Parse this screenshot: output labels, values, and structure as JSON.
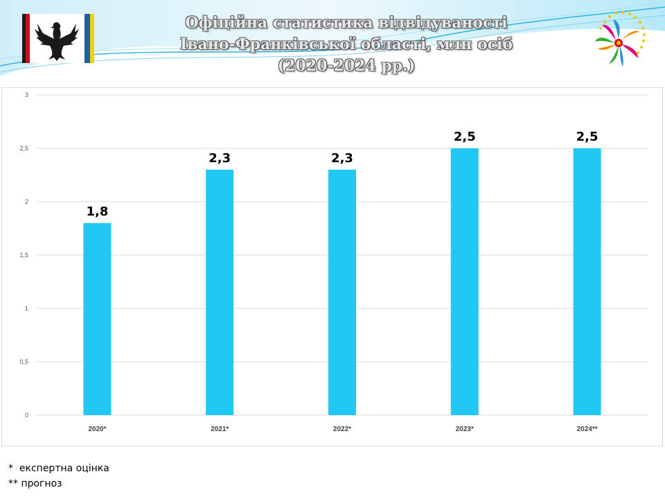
{
  "header": {
    "title_lines": [
      "Офіційна статистика відвідуваності",
      "Івано-Франківської області, млн осіб",
      "(2020-2024 рр.)"
    ]
  },
  "footnotes": [
    "*  експертна оцінка",
    "** прогноз"
  ],
  "colors": {
    "bar": "#22c8f4",
    "grid": "#d9d9d9",
    "flag_black": "#1a1a1a",
    "flag_red": "#c0141c",
    "flag_blue": "#1f5fa8",
    "flag_yellow": "#f5d000"
  },
  "chart_data": {
    "type": "bar",
    "categories": [
      "2020*",
      "2021*",
      "2022*",
      "2023*",
      "2024**"
    ],
    "values": [
      1.8,
      2.3,
      2.3,
      2.5,
      2.5
    ],
    "data_labels": [
      "1,8",
      "2,3",
      "2,3",
      "2,5",
      "2,5"
    ],
    "y_ticks": [
      "0",
      "0,5",
      "1",
      "1,5",
      "2",
      "2,5",
      "3"
    ],
    "ylim": [
      0,
      3
    ],
    "grid": true,
    "legend": "none",
    "title": "",
    "xlabel": "",
    "ylabel": ""
  }
}
